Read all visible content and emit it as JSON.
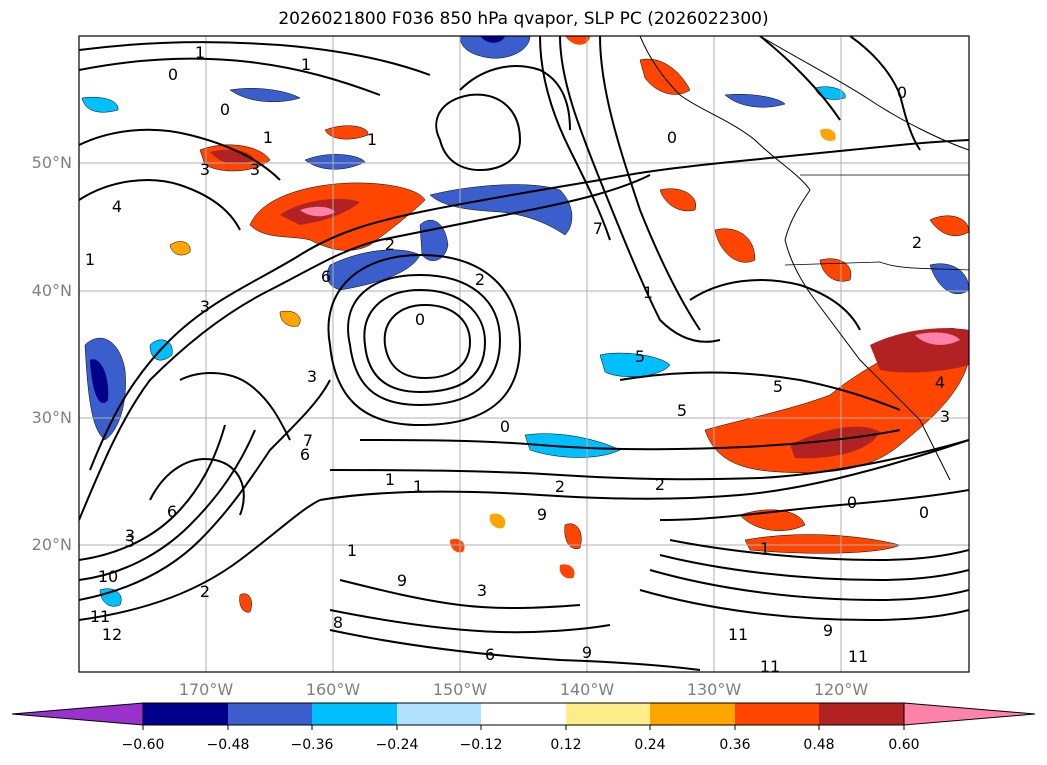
{
  "title": "2026021800 F036 850 hPa qvapor, SLP PC (2026022300)",
  "lat_labels": [
    "50°N",
    "40°N",
    "30°N",
    "20°N"
  ],
  "lon_labels": [
    "170°W",
    "160°W",
    "150°W",
    "140°W",
    "130°W",
    "120°W"
  ],
  "colorbar": {
    "tick_labels": [
      "−0.60",
      "−0.48",
      "−0.36",
      "−0.24",
      "−0.12",
      "0.12",
      "0.24",
      "0.36",
      "0.48",
      "0.60"
    ],
    "colors": [
      "#9932cc",
      "#00008b",
      "#3a5fcd",
      "#00bfff",
      "#b0e2ff",
      "#ffffff",
      "#ffec8b",
      "#ffa500",
      "#ff4500",
      "#b22222",
      "#ff82ab"
    ]
  },
  "contour_labels": [
    "1",
    "0",
    "1",
    "0",
    "1",
    "1",
    "3",
    "3",
    "4",
    "1",
    "3",
    "2",
    "0",
    "2",
    "6",
    "3",
    "0",
    "6",
    "1",
    "2",
    "1",
    "6",
    "3",
    "1",
    "3",
    "2",
    "8",
    "6",
    "9",
    "9",
    "11",
    "11",
    "11",
    "10",
    "11",
    "12",
    "9",
    "1",
    "5",
    "5",
    "0",
    "0",
    "0",
    "2",
    "5",
    "2",
    "4",
    "1",
    "7",
    "7",
    "3",
    "0",
    "3",
    "9"
  ]
}
